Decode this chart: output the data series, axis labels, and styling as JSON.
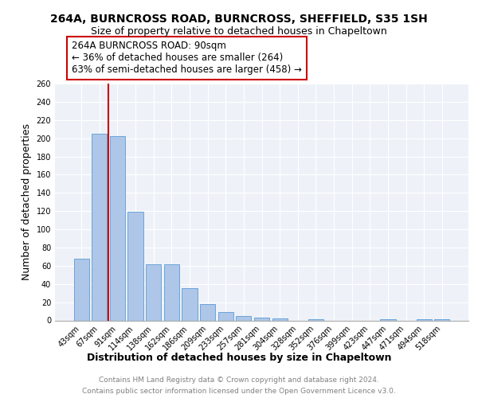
{
  "title_line1": "264A, BURNCROSS ROAD, BURNCROSS, SHEFFIELD, S35 1SH",
  "title_line2": "Size of property relative to detached houses in Chapeltown",
  "xlabel": "Distribution of detached houses by size in Chapeltown",
  "ylabel": "Number of detached properties",
  "footer_line1": "Contains HM Land Registry data © Crown copyright and database right 2024.",
  "footer_line2": "Contains public sector information licensed under the Open Government Licence v3.0.",
  "categories": [
    "43sqm",
    "67sqm",
    "91sqm",
    "114sqm",
    "138sqm",
    "162sqm",
    "186sqm",
    "209sqm",
    "233sqm",
    "257sqm",
    "281sqm",
    "304sqm",
    "328sqm",
    "352sqm",
    "376sqm",
    "399sqm",
    "423sqm",
    "447sqm",
    "471sqm",
    "494sqm",
    "518sqm"
  ],
  "values": [
    68,
    205,
    202,
    119,
    62,
    62,
    35,
    18,
    9,
    5,
    3,
    2,
    0,
    1,
    0,
    0,
    0,
    1,
    0,
    1,
    1
  ],
  "bar_color": "#aec6e8",
  "bar_edge_color": "#5b9bd5",
  "annotation_box_color": "#cc0000",
  "annotation_line_color": "#cc0000",
  "annotation_title": "264A BURNCROSS ROAD: 90sqm",
  "annotation_line2": "← 36% of detached houses are smaller (264)",
  "annotation_line3": "63% of semi-detached houses are larger (458) →",
  "ylim": [
    0,
    260
  ],
  "yticks": [
    0,
    20,
    40,
    60,
    80,
    100,
    120,
    140,
    160,
    180,
    200,
    220,
    240,
    260
  ],
  "background_color": "#eef2f8",
  "grid_color": "#ffffff",
  "title_fontsize": 10,
  "subtitle_fontsize": 9,
  "axis_label_fontsize": 9,
  "tick_fontsize": 7,
  "annotation_fontsize": 8.5,
  "footer_fontsize": 6.5
}
